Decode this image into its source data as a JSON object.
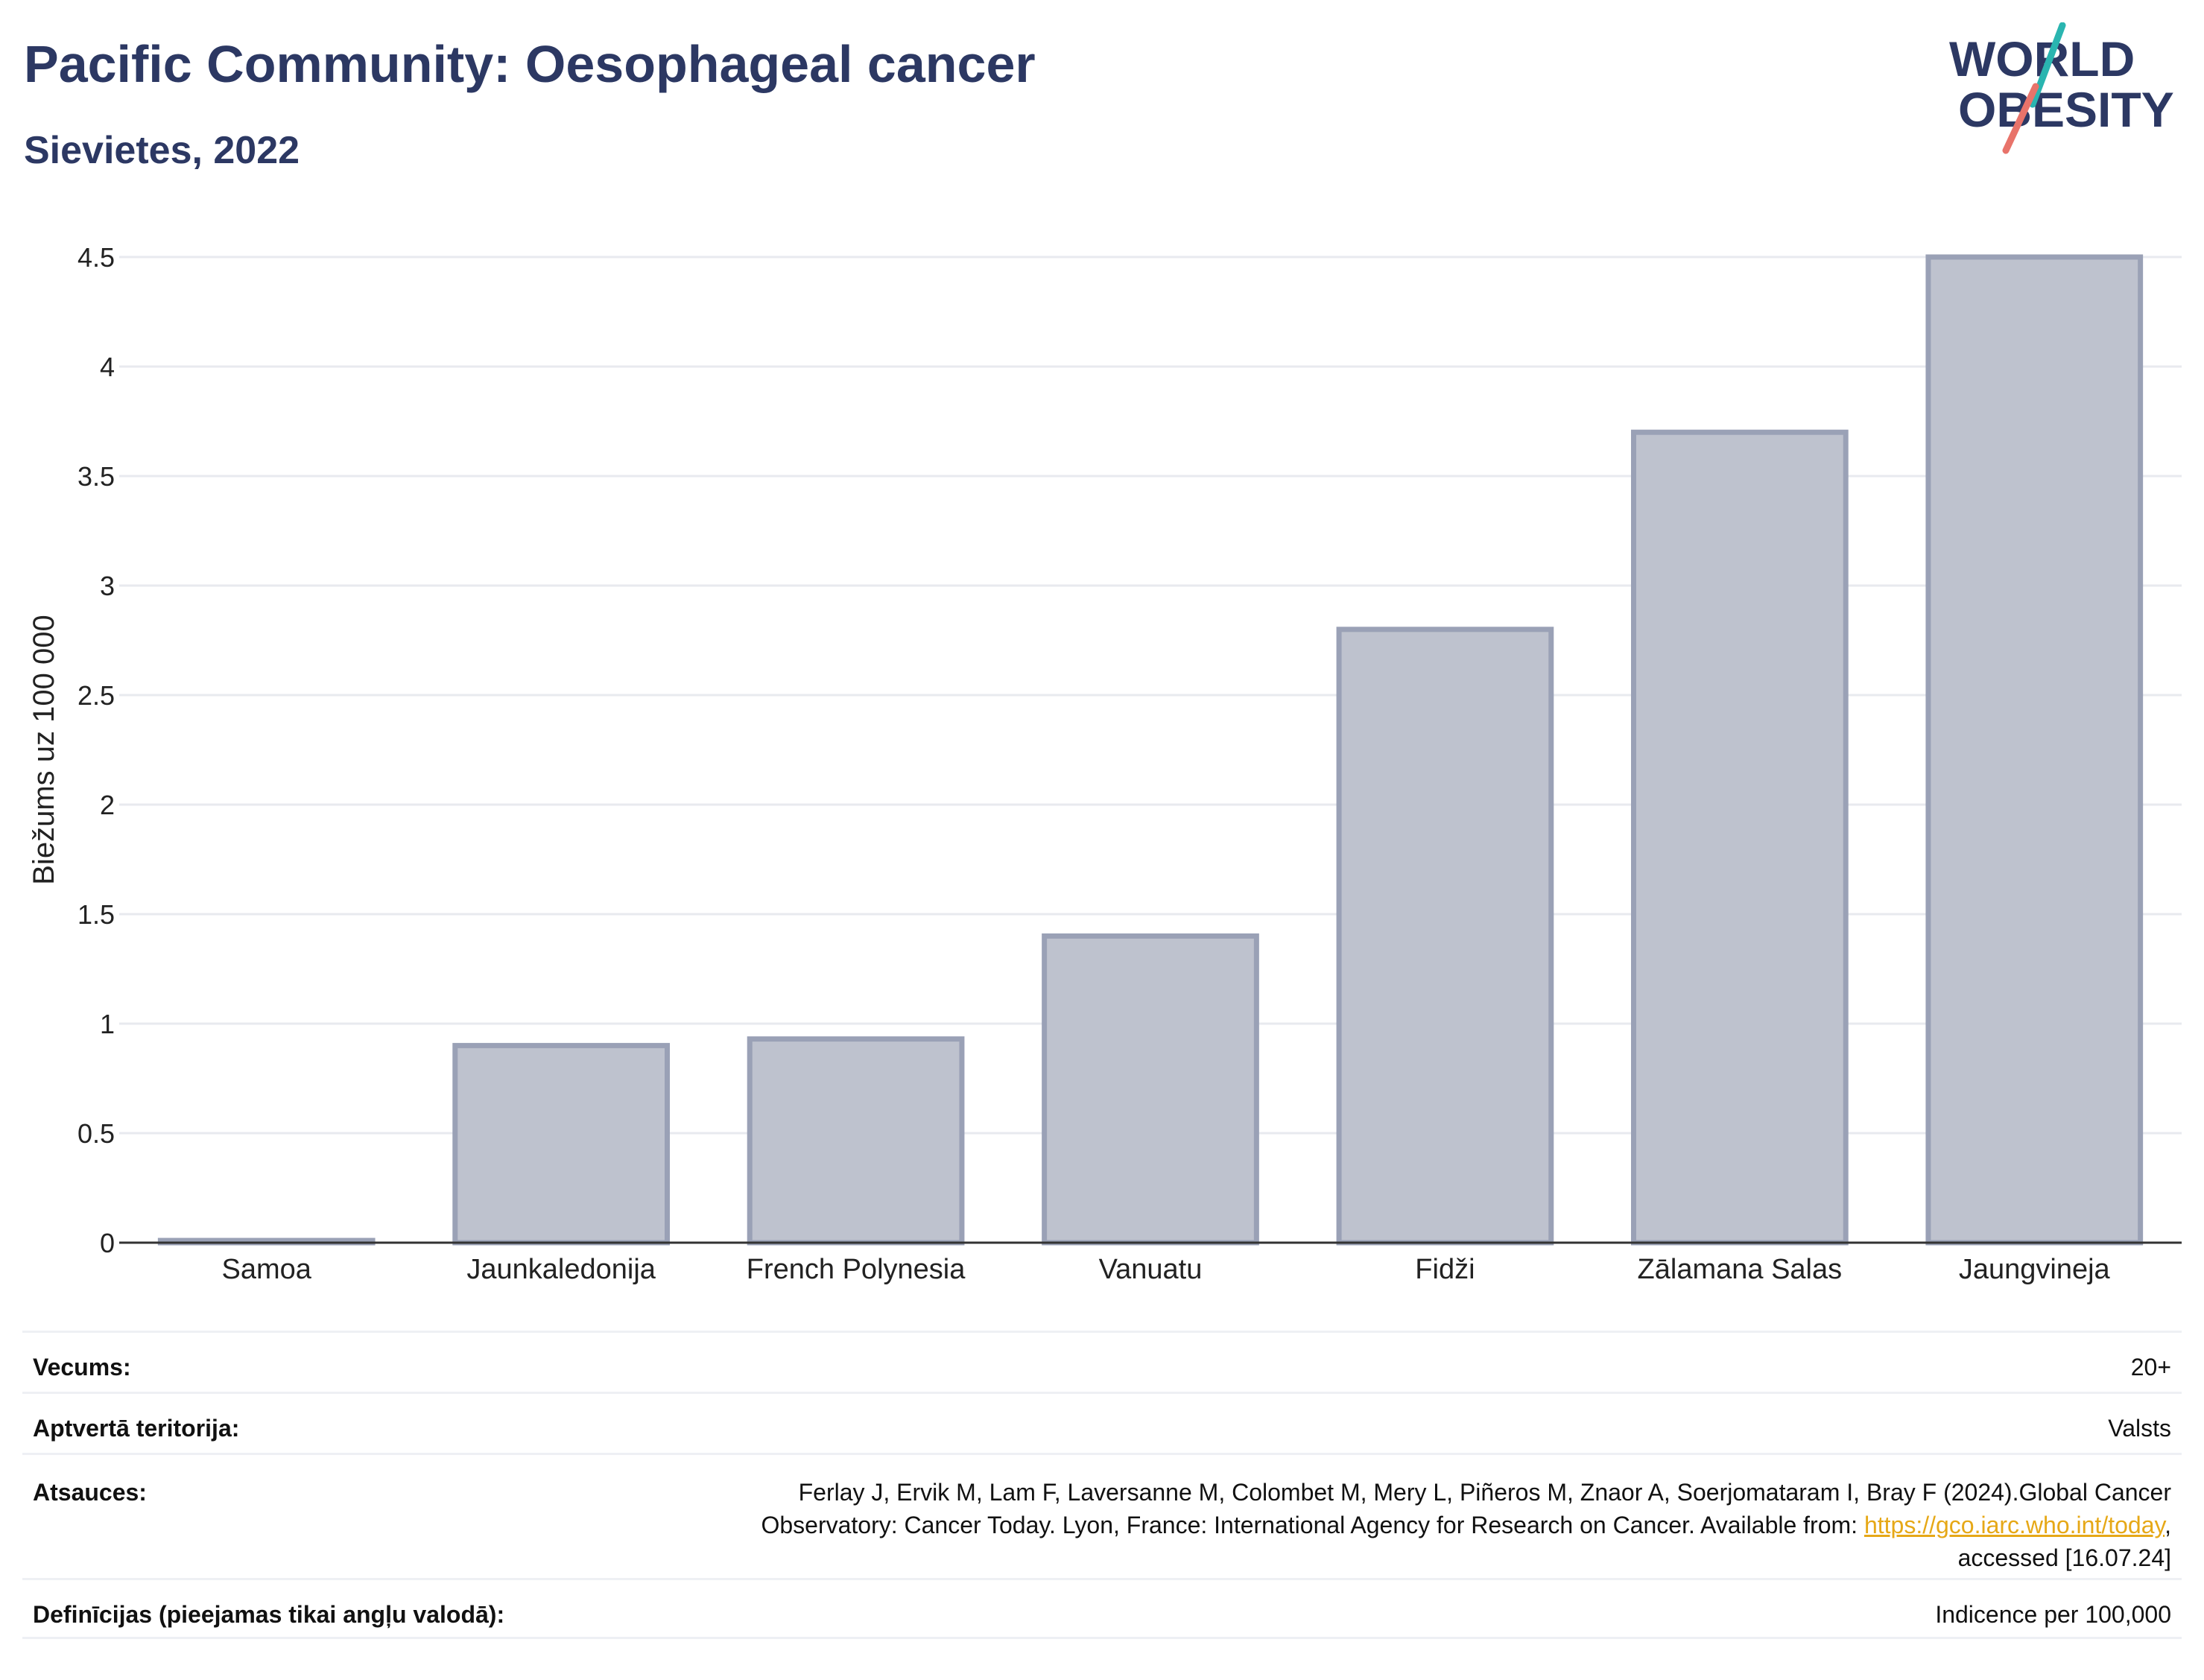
{
  "header": {
    "title": "Pacific Community: Oesophageal cancer",
    "subtitle": "Sievietes, 2022"
  },
  "logo": {
    "line1": "WORLD",
    "line2": "OBESITY"
  },
  "colors": {
    "bar_fill": "#bec2ce",
    "bar_stroke": "#9aa1b6",
    "title": "#2c3863",
    "link": "#e6a817",
    "logo_teal": "#2ab5b0",
    "logo_coral": "#e8736a"
  },
  "chart_data": {
    "type": "bar",
    "categories": [
      "Samoa",
      "Jaunkaledonija",
      "French Polynesia",
      "Vanuatu",
      "Fidži",
      "Zālamana Salas",
      "Jaungvineja"
    ],
    "values": [
      0.01,
      0.9,
      0.93,
      1.4,
      2.8,
      3.7,
      4.5
    ],
    "ylabel": "Biežums uz 100 000",
    "ylim": [
      0,
      4.5
    ],
    "yticks": [
      0,
      0.5,
      1,
      1.5,
      2,
      2.5,
      3,
      3.5,
      4,
      4.5
    ],
    "ytick_labels": [
      "0",
      "0.5",
      "1",
      "1.5",
      "2",
      "2.5",
      "3",
      "3.5",
      "4",
      "4.5"
    ],
    "grid": true
  },
  "meta": {
    "age_label": "Vecums:",
    "age_value": "20+",
    "coverage_label": "Aptvertā teritorija:",
    "coverage_value": "Valsts",
    "references_label": "Atsauces:",
    "references_line1": "Ferlay J, Ervik M, Lam F, Laversanne M, Colombet M, Mery L, Piñeros M, Znaor A, Soerjomataram I, Bray F (2024).Global Cancer",
    "references_line2_pre": "Observatory: Cancer Today. Lyon, France: International Agency for Research on Cancer. Available from: ",
    "references_link": "https://gco.iarc.who.int/today",
    "references_line2_post": ",",
    "references_line3": "accessed [16.07.24]",
    "definitions_label": "Definīcijas (pieejamas tikai angļu valodā):",
    "definitions_value": "Indicence per 100,000"
  }
}
